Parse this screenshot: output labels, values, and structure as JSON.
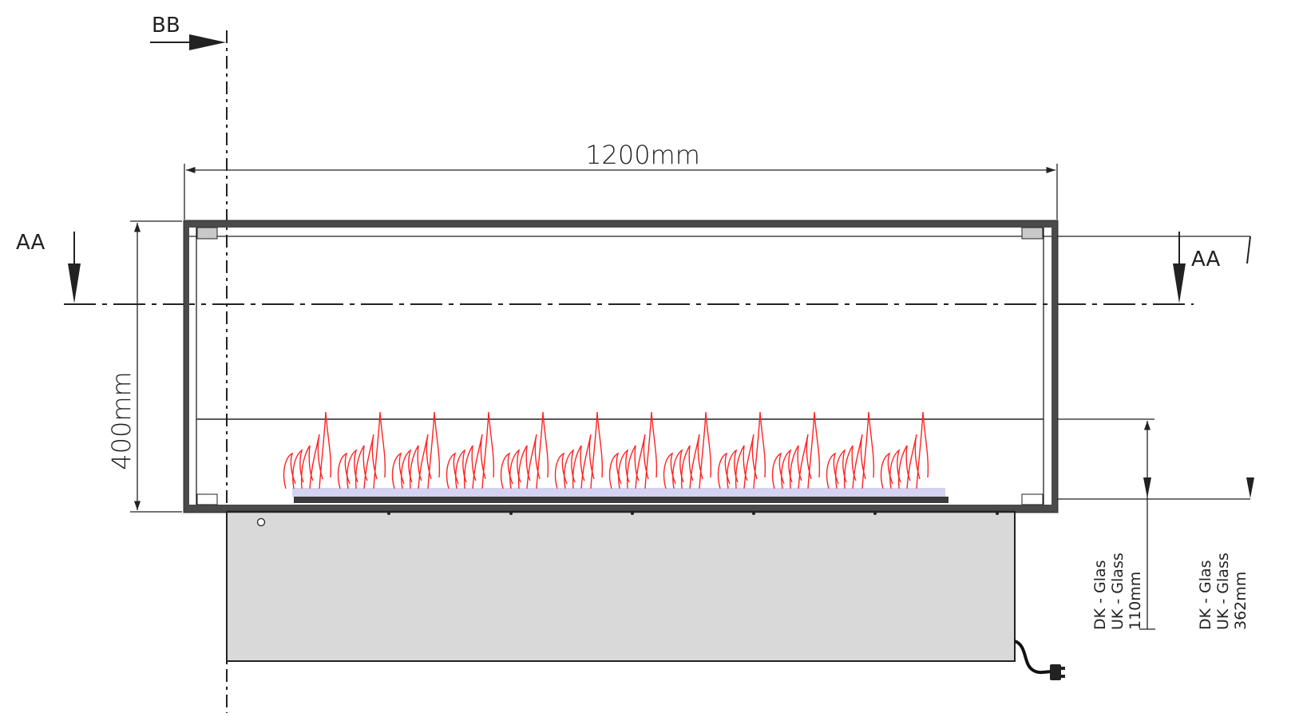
{
  "drawing": {
    "section_bb_label": "BB",
    "section_aa_left_label": "AA",
    "section_aa_right_label": "AA",
    "width_dimension": "1200mm",
    "height_dimension": "400mm",
    "glass_note_1": {
      "line1": "DK - Glas",
      "line2": "UK - Glass",
      "line3": "110mm"
    },
    "glass_note_2": {
      "line1": "DK - Glas",
      "line2": "UK - Glass",
      "line3": "362mm"
    }
  },
  "colors": {
    "line": "#222222",
    "frame": "#3a3a3a",
    "body_fill": "#d9d9d9",
    "flame": "#ff2222",
    "glow": "#c9c7ee",
    "corner_block": "#c8c8c8"
  }
}
